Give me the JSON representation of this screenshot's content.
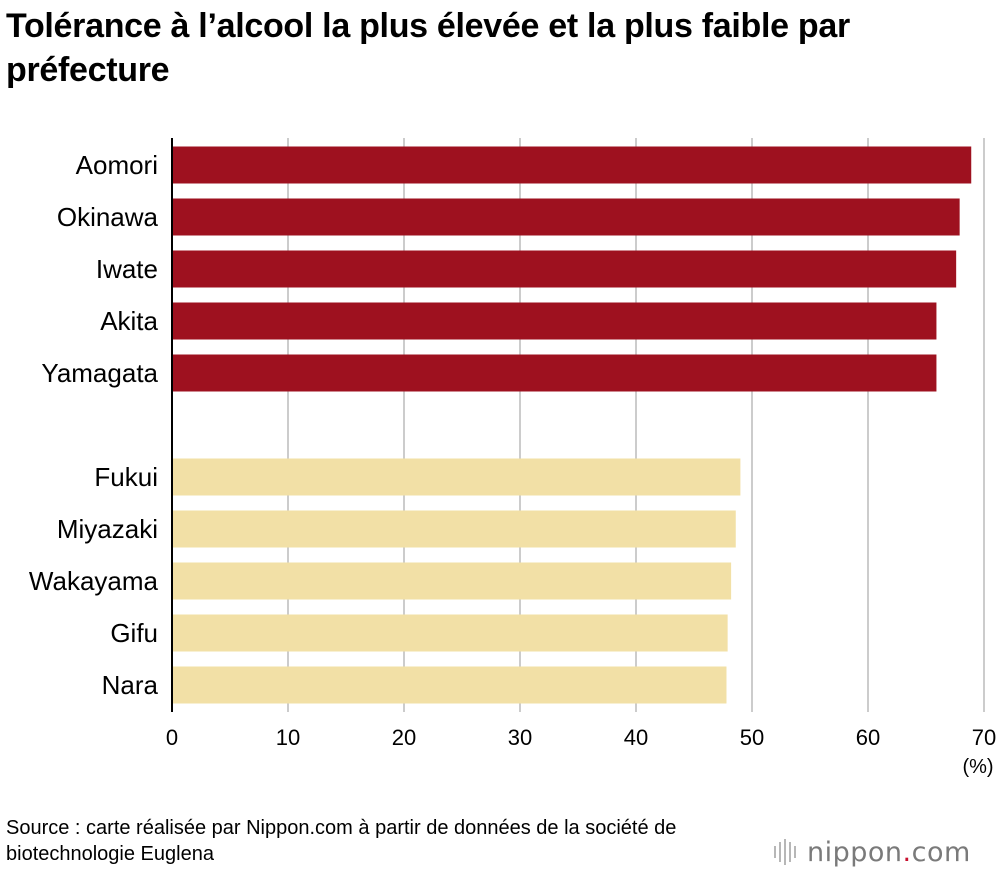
{
  "chart_data": {
    "type": "bar",
    "orientation": "horizontal",
    "title": "Tolérance à l’alcool la plus élevée et la plus faible par préfecture",
    "unit_label": "(%)",
    "xlim": [
      0,
      70
    ],
    "xticks": [
      0,
      10,
      20,
      30,
      40,
      50,
      60,
      70
    ],
    "grid": true,
    "groups": [
      {
        "color": "#9e111f",
        "bars": [
          {
            "label": "Aomori",
            "value": 68.9
          },
          {
            "label": "Okinawa",
            "value": 67.9
          },
          {
            "label": "Iwate",
            "value": 67.6
          },
          {
            "label": "Akita",
            "value": 65.9
          },
          {
            "label": "Yamagata",
            "value": 65.9
          }
        ]
      },
      {
        "color": "#f2e0a6",
        "bars": [
          {
            "label": "Fukui",
            "value": 49.0
          },
          {
            "label": "Miyazaki",
            "value": 48.6
          },
          {
            "label": "Wakayama",
            "value": 48.2
          },
          {
            "label": "Gifu",
            "value": 47.9
          },
          {
            "label": "Nara",
            "value": 47.8
          }
        ]
      }
    ]
  },
  "footer": {
    "source": "Source : carte réalisée par Nippon.com à partir de données de la société de biotechnologie Euglena",
    "logo_main": "nippon",
    "logo_dot": ".",
    "logo_suffix": "com"
  },
  "colors": {
    "gridline": "#cccccc",
    "axis": "#000000",
    "logo_gray": "#7a7a7a",
    "logo_red": "#c8102e"
  }
}
